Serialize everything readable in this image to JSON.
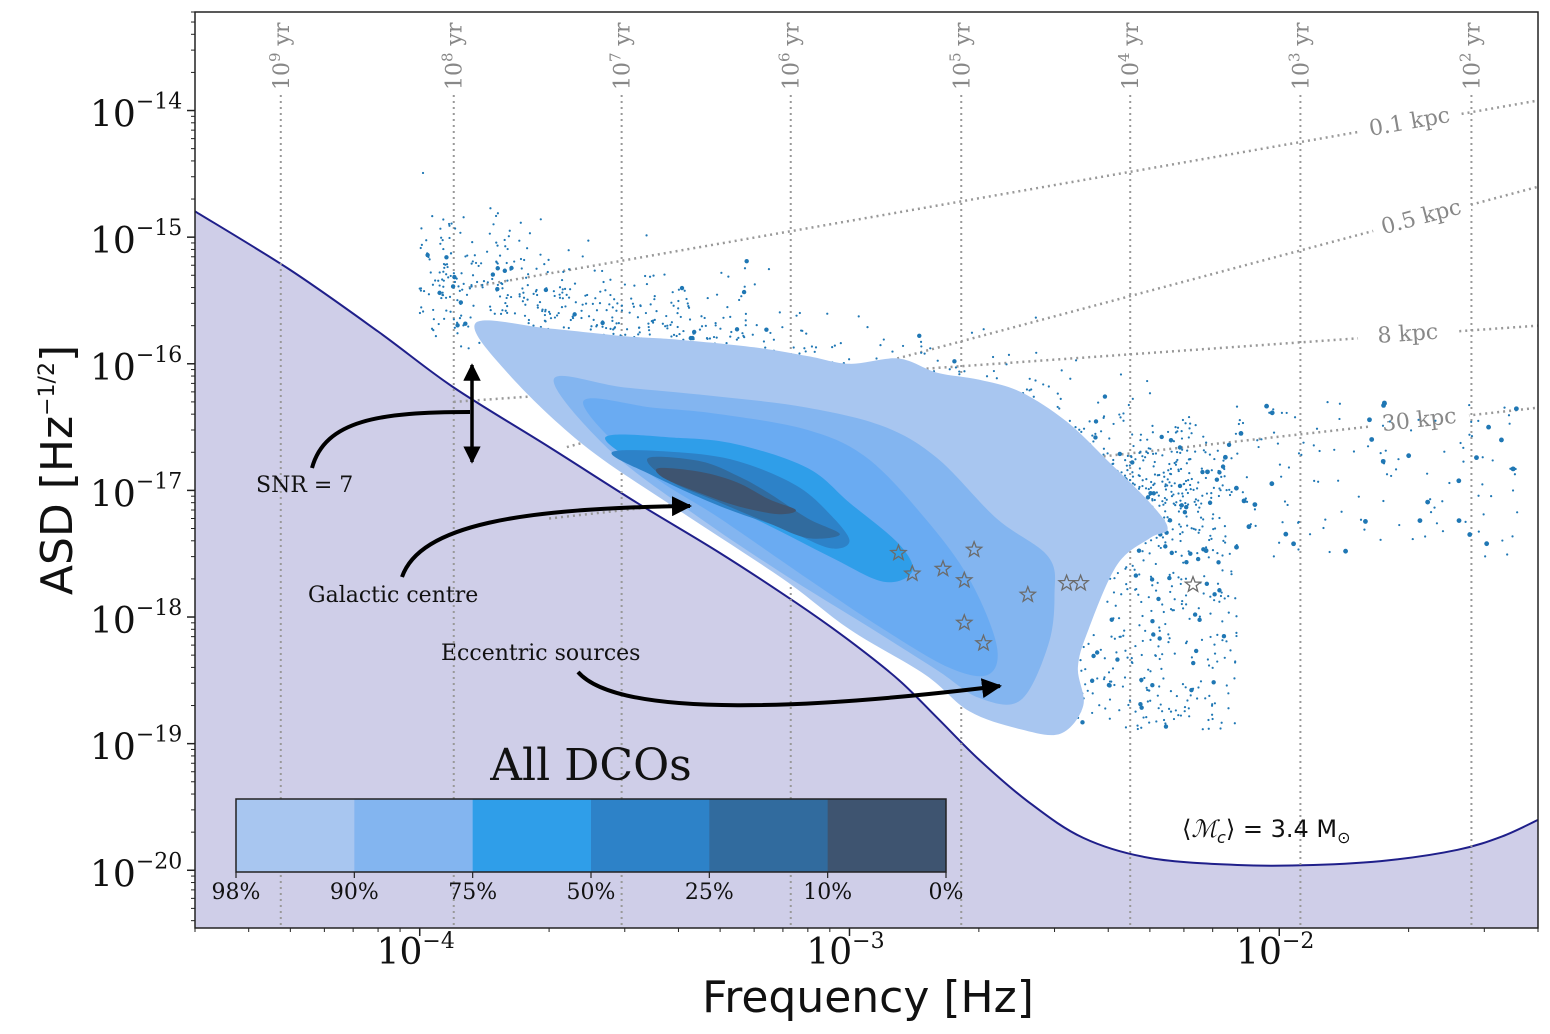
{
  "chart_data": {
    "type": "scatter",
    "xlabel": "Frequency [Hz]",
    "ylabel": "ASD [Hz^-1/2]",
    "xscale": "log",
    "yscale": "log",
    "xlim": [
      3e-05,
      0.04
    ],
    "ylim": [
      3.5e-21,
      6e-14
    ],
    "x_ticks": [
      {
        "value": 0.0001,
        "base": "10",
        "exp": "−4"
      },
      {
        "value": 0.001,
        "base": "10",
        "exp": "−3"
      },
      {
        "value": 0.01,
        "base": "10",
        "exp": "−2"
      }
    ],
    "y_ticks": [
      {
        "value": 1e-20,
        "base": "10",
        "exp": "−20"
      },
      {
        "value": 1e-19,
        "base": "10",
        "exp": "−19"
      },
      {
        "value": 1e-18,
        "base": "10",
        "exp": "−18"
      },
      {
        "value": 1e-17,
        "base": "10",
        "exp": "−17"
      },
      {
        "value": 1e-16,
        "base": "10",
        "exp": "−16"
      },
      {
        "value": 1e-15,
        "base": "10",
        "exp": "−15"
      },
      {
        "value": 1e-14,
        "base": "10",
        "exp": "−14"
      }
    ],
    "ylabel_parts": {
      "main": "ASD [Hz",
      "sup": "−1/2",
      "end": "]"
    },
    "merger_time_lines": [
      {
        "x": 4.75e-05,
        "label_base": "10",
        "label_exp": "9",
        "label_unit": " yr"
      },
      {
        "x": 0.00012,
        "label_base": "10",
        "label_exp": "8",
        "label_unit": " yr"
      },
      {
        "x": 0.000295,
        "label_base": "10",
        "label_exp": "7",
        "label_unit": " yr"
      },
      {
        "x": 0.00073,
        "label_base": "10",
        "label_exp": "6",
        "label_unit": " yr"
      },
      {
        "x": 0.00182,
        "label_base": "10",
        "label_exp": "5",
        "label_unit": " yr"
      },
      {
        "x": 0.0045,
        "label_base": "10",
        "label_exp": "4",
        "label_unit": " yr"
      },
      {
        "x": 0.0112,
        "label_base": "10",
        "label_exp": "3",
        "label_unit": " yr"
      },
      {
        "x": 0.028,
        "label_base": "10",
        "label_exp": "2",
        "label_unit": " yr"
      }
    ],
    "distance_lines": [
      {
        "label": "0.1 kpc",
        "x0": 0.00013,
        "y0": 4e-16,
        "x1": 0.04,
        "y1": 1.2e-14
      },
      {
        "label": "0.5 kpc",
        "x0": 0.00022,
        "y0": 2.2e-17,
        "x1": 0.04,
        "y1": 2.5e-15
      },
      {
        "label": "8 kpc",
        "x0": 0.00012,
        "y0": 5e-17,
        "x1": 0.04,
        "y1": 2e-16
      },
      {
        "label": "30 kpc",
        "x0": 0.0002,
        "y0": 6e-18,
        "x1": 0.04,
        "y1": 4.5e-17
      }
    ],
    "sensitivity_curve": {
      "fill_color": "#cfcee8",
      "line_color": "#1f1f8a",
      "points": [
        [
          3e-05,
          1.6e-15
        ],
        [
          5e-05,
          5.5e-16
        ],
        [
          8e-05,
          1.8e-16
        ],
        [
          0.00012,
          6.5e-17
        ],
        [
          0.0002,
          2.2e-17
        ],
        [
          0.00032,
          8e-18
        ],
        [
          0.0005,
          3.2e-18
        ],
        [
          0.00075,
          1.3e-18
        ],
        [
          0.001,
          6.5e-19
        ],
        [
          0.0013,
          3.2e-19
        ],
        [
          0.0016,
          1.6e-19
        ],
        [
          0.002,
          7.5e-20
        ],
        [
          0.0026,
          3.5e-20
        ],
        [
          0.0035,
          1.8e-20
        ],
        [
          0.005,
          1.25e-20
        ],
        [
          0.008,
          1.1e-20
        ],
        [
          0.012,
          1.1e-20
        ],
        [
          0.018,
          1.2e-20
        ],
        [
          0.026,
          1.45e-20
        ],
        [
          0.033,
          1.85e-20
        ],
        [
          0.04,
          2.5e-20
        ]
      ]
    },
    "density_contours": [
      {
        "level": "98%",
        "color": "#a8c6f0",
        "points": [
          [
            0.000135,
            2.1e-16
          ],
          [
            0.0002,
            1.9e-16
          ],
          [
            0.0003,
            1.65e-16
          ],
          [
            0.0004,
            1.55e-16
          ],
          [
            0.0006,
            1.35e-16
          ],
          [
            0.0008,
            1.15e-16
          ],
          [
            0.001,
            1e-16
          ],
          [
            0.0013,
            1.1e-16
          ],
          [
            0.0016,
            8.5e-17
          ],
          [
            0.002,
            7.5e-17
          ],
          [
            0.0025,
            6e-17
          ],
          [
            0.0032,
            3.5e-17
          ],
          [
            0.004,
            1.7e-17
          ],
          [
            0.005,
            8e-18
          ],
          [
            0.0055,
            5e-18
          ],
          [
            0.005,
            4.2e-18
          ],
          [
            0.0042,
            2.6e-18
          ],
          [
            0.0036,
            8e-19
          ],
          [
            0.0034,
            4e-19
          ],
          [
            0.0035,
            2e-19
          ],
          [
            0.0031,
            1.2e-19
          ],
          [
            0.0025,
            1.3e-19
          ],
          [
            0.0019,
            1.8e-19
          ],
          [
            0.0015,
            3.5e-19
          ],
          [
            0.001,
            8e-19
          ],
          [
            0.0007,
            2e-18
          ],
          [
            0.0004,
            7e-18
          ],
          [
            0.00024,
            2.3e-17
          ],
          [
            0.00016,
            8.5e-17
          ]
        ]
      },
      {
        "level": "90%",
        "color": "#83b5f0",
        "points": [
          [
            0.000205,
            7.5e-17
          ],
          [
            0.0003,
            6.5e-17
          ],
          [
            0.0005,
            5.5e-17
          ],
          [
            0.0008,
            4.5e-17
          ],
          [
            0.0012,
            3.2e-17
          ],
          [
            0.0016,
            1.8e-17
          ],
          [
            0.0022,
            6e-18
          ],
          [
            0.0029,
            3e-18
          ],
          [
            0.003,
            1.5e-18
          ],
          [
            0.0029,
            6e-19
          ],
          [
            0.0025,
            2.2e-19
          ],
          [
            0.002,
            2.3e-19
          ],
          [
            0.0016,
            3.8e-19
          ],
          [
            0.0011,
            8.5e-19
          ],
          [
            0.0007,
            2.2e-18
          ],
          [
            0.00045,
            6e-18
          ],
          [
            0.00028,
            2e-17
          ]
        ]
      },
      {
        "level": "75%",
        "color": "#6aabf2",
        "points": [
          [
            0.00024,
            5e-17
          ],
          [
            0.00035,
            4.5e-17
          ],
          [
            0.0005,
            4e-17
          ],
          [
            0.0008,
            3e-17
          ],
          [
            0.0011,
            1.8e-17
          ],
          [
            0.0015,
            6e-18
          ],
          [
            0.0019,
            2e-18
          ],
          [
            0.0022,
            6e-19
          ],
          [
            0.0021,
            3.5e-19
          ],
          [
            0.0017,
            4e-19
          ],
          [
            0.0012,
            8e-19
          ],
          [
            0.0008,
            2e-18
          ],
          [
            0.0005,
            6e-18
          ],
          [
            0.00033,
            1.5e-17
          ]
        ]
      },
      {
        "level": "50%",
        "color": "#2f9ee9",
        "points": [
          [
            0.00027,
            2.6e-17
          ],
          [
            0.0004,
            2.6e-17
          ],
          [
            0.00055,
            2.3e-17
          ],
          [
            0.0008,
            1.5e-17
          ],
          [
            0.001,
            8e-18
          ],
          [
            0.0013,
            3.8e-18
          ],
          [
            0.0014,
            2.3e-18
          ],
          [
            0.0012,
            1.9e-18
          ],
          [
            0.0009,
            3e-18
          ],
          [
            0.0006,
            6e-18
          ],
          [
            0.00038,
            1.2e-17
          ]
        ]
      },
      {
        "level": "25%",
        "color": "#2d82c8",
        "points": [
          [
            0.00028,
            2e-17
          ],
          [
            0.0004,
            2e-17
          ],
          [
            0.00055,
            1.7e-17
          ],
          [
            0.00075,
            1.1e-17
          ],
          [
            0.0009,
            6.5e-18
          ],
          [
            0.001,
            4e-18
          ],
          [
            0.0009,
            3.5e-18
          ],
          [
            0.0007,
            5e-18
          ],
          [
            0.0005,
            7.5e-18
          ],
          [
            0.00035,
            1.3e-17
          ]
        ]
      },
      {
        "level": "10%",
        "color": "#316b9e",
        "points": [
          [
            0.00034,
            1.8e-17
          ],
          [
            0.00045,
            1.7e-17
          ],
          [
            0.00055,
            1.3e-17
          ],
          [
            0.00065,
            9.5e-18
          ],
          [
            0.0008,
            6e-18
          ],
          [
            0.00095,
            4.5e-18
          ],
          [
            0.0008,
            4.2e-18
          ],
          [
            0.00065,
            5.5e-18
          ],
          [
            0.0005,
            8e-18
          ],
          [
            0.00038,
            1.2e-17
          ]
        ]
      },
      {
        "level": "0%",
        "color": "#3e5470",
        "points": [
          [
            0.00036,
            1.5e-17
          ],
          [
            0.00045,
            1.4e-17
          ],
          [
            0.00055,
            1.15e-17
          ],
          [
            0.00065,
            8.5e-18
          ],
          [
            0.00075,
            7e-18
          ],
          [
            0.00068,
            6.5e-18
          ],
          [
            0.00055,
            7.5e-18
          ],
          [
            0.00045,
            9.5e-18
          ],
          [
            0.00037,
            1.25e-17
          ]
        ]
      }
    ],
    "scatter_color": "#1f77b4",
    "eccentric_sources": [
      [
        0.0013,
        3.2e-18
      ],
      [
        0.0014,
        2.2e-18
      ],
      [
        0.00165,
        2.4e-18
      ],
      [
        0.00185,
        1.95e-18
      ],
      [
        0.00195,
        3.4e-18
      ],
      [
        0.00185,
        9e-19
      ],
      [
        0.00205,
        6.2e-19
      ],
      [
        0.0026,
        1.5e-18
      ],
      [
        0.0032,
        1.85e-18
      ],
      [
        0.00345,
        1.85e-18
      ],
      [
        0.0063,
        1.8e-18
      ]
    ],
    "annotations": [
      {
        "text": "SNR = 7"
      },
      {
        "text": "Galactic centre"
      },
      {
        "text": "Eccentric sources"
      }
    ],
    "colorbar": {
      "title": "All DCOs",
      "levels": [
        "98%",
        "90%",
        "75%",
        "50%",
        "25%",
        "10%",
        "0%"
      ],
      "colors": [
        "#a8c6f0",
        "#83b5f0",
        "#2f9ee9",
        "#2d82c8",
        "#316b9e",
        "#3e5470"
      ]
    },
    "mass_annotation": {
      "prefix": "⟨",
      "symbol": "ℳ",
      "sub": "c",
      "suffix": "⟩ = 3.4 M",
      "sun": "⊙"
    }
  }
}
